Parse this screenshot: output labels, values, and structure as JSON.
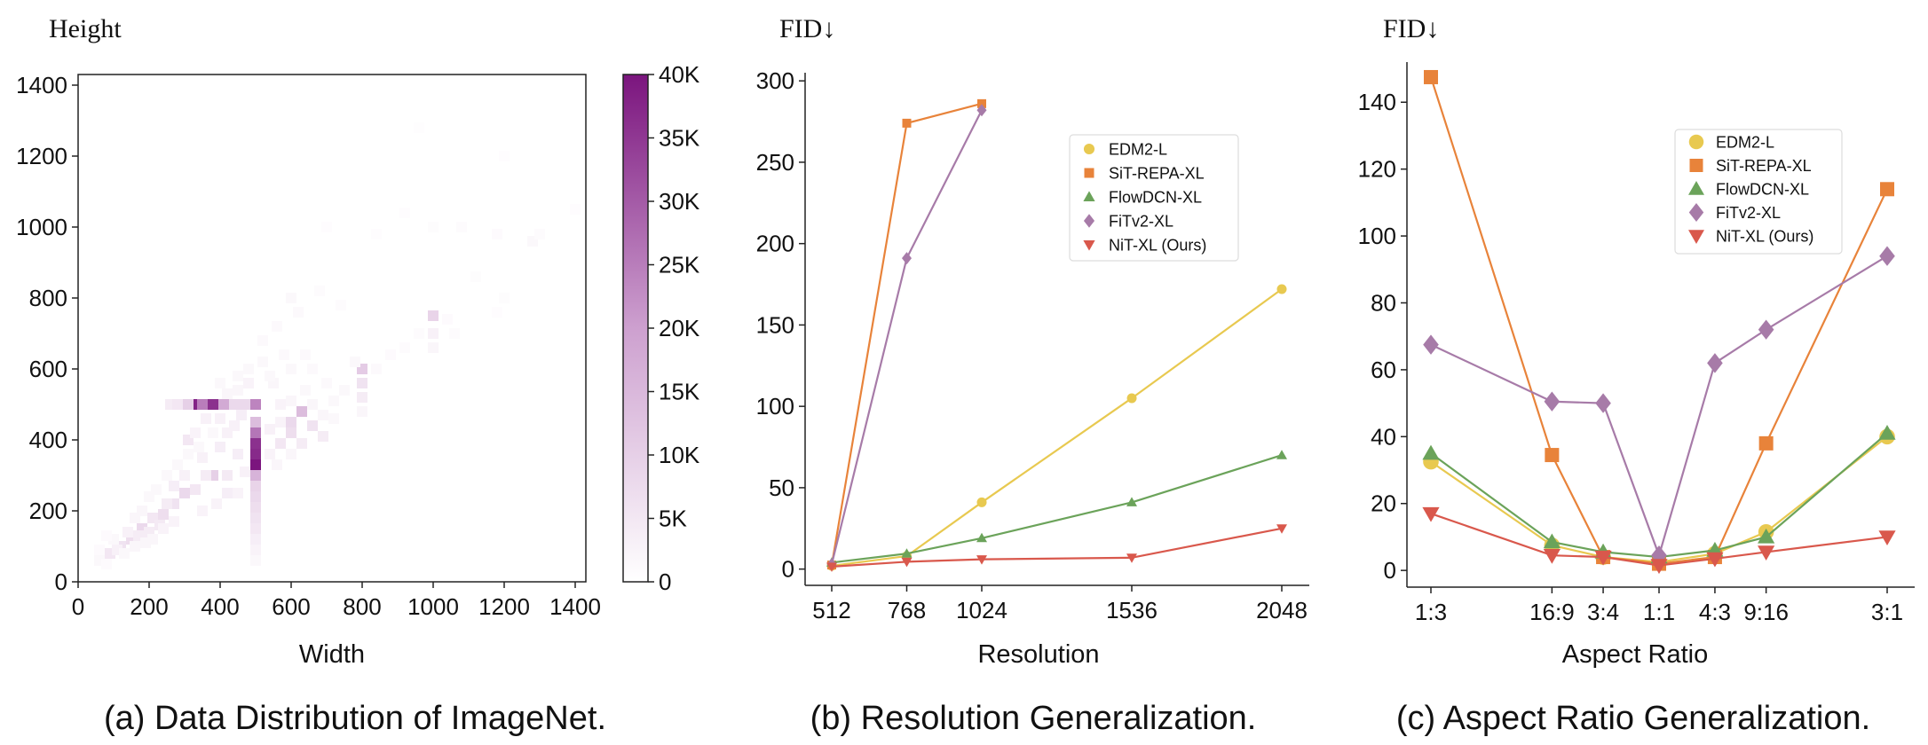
{
  "colors": {
    "edm2": "#E8C950",
    "sit": "#E8833A",
    "flow": "#6BA35A",
    "fitv2": "#A77BA8",
    "nit": "#D9584C",
    "heat_max": "#7B157E"
  },
  "panels": {
    "a": {
      "caption": "(a) Data Distribution of ImageNet."
    },
    "b": {
      "caption": "(b) Resolution Generalization."
    },
    "c": {
      "caption": "(c) Aspect Ratio Generalization."
    }
  },
  "chart_data": [
    {
      "type": "heatmap",
      "xlabel": "Width",
      "ylabel": "Height",
      "xlim": [
        0,
        1430
      ],
      "ylim": [
        0,
        1430
      ],
      "xticks": [
        "0",
        "200",
        "400",
        "600",
        "800",
        "1000",
        "1200",
        "1400"
      ],
      "yticks": [
        "0",
        "200",
        "400",
        "600",
        "800",
        "1000",
        "1200",
        "1400"
      ],
      "colorbar": {
        "range": [
          0,
          40000
        ],
        "ticks": [
          "0",
          "5K",
          "10K",
          "15K",
          "20K",
          "25K",
          "30K",
          "35K",
          "40K"
        ]
      },
      "cells": [
        [
          330,
          500,
          38000
        ],
        [
          380,
          500,
          36000
        ],
        [
          350,
          500,
          25000
        ],
        [
          410,
          500,
          18000
        ],
        [
          310,
          500,
          10000
        ],
        [
          440,
          500,
          8000
        ],
        [
          470,
          500,
          8000
        ],
        [
          500,
          500,
          24000
        ],
        [
          260,
          500,
          4000
        ],
        [
          280,
          500,
          5000
        ],
        [
          500,
          330,
          40000
        ],
        [
          500,
          360,
          37000
        ],
        [
          500,
          390,
          36000
        ],
        [
          500,
          420,
          26000
        ],
        [
          500,
          450,
          14000
        ],
        [
          500,
          300,
          16000
        ],
        [
          500,
          270,
          9000
        ],
        [
          500,
          240,
          8000
        ],
        [
          500,
          210,
          7000
        ],
        [
          500,
          180,
          6000
        ],
        [
          500,
          150,
          5000
        ],
        [
          500,
          120,
          3500
        ],
        [
          500,
          90,
          2500
        ],
        [
          500,
          60,
          1500
        ],
        [
          630,
          480,
          14000
        ],
        [
          600,
          450,
          8000
        ],
        [
          660,
          440,
          6000
        ],
        [
          600,
          420,
          7000
        ],
        [
          570,
          390,
          5000
        ],
        [
          630,
          390,
          4000
        ],
        [
          690,
          410,
          4000
        ],
        [
          800,
          600,
          11000
        ],
        [
          800,
          560,
          6000
        ],
        [
          800,
          520,
          4000
        ],
        [
          1000,
          750,
          9000
        ],
        [
          1000,
          700,
          3000
        ],
        [
          1000,
          660,
          2000
        ],
        [
          380,
          300,
          10000
        ],
        [
          310,
          400,
          5000
        ],
        [
          300,
          250,
          8000
        ],
        [
          240,
          190,
          7000
        ],
        [
          180,
          150,
          8000
        ],
        [
          150,
          120,
          7000
        ],
        [
          120,
          100,
          6000
        ],
        [
          90,
          80,
          5000
        ],
        [
          210,
          180,
          5000
        ],
        [
          270,
          220,
          6000
        ],
        [
          330,
          260,
          5000
        ],
        [
          360,
          300,
          4000
        ],
        [
          250,
          220,
          4000
        ],
        [
          230,
          160,
          4500
        ],
        [
          200,
          140,
          4000
        ],
        [
          170,
          130,
          4000
        ],
        [
          110,
          90,
          3000
        ],
        [
          140,
          140,
          3000
        ],
        [
          270,
          270,
          3500
        ],
        [
          300,
          300,
          3000
        ],
        [
          420,
          300,
          4500
        ],
        [
          450,
          360,
          3500
        ],
        [
          420,
          420,
          3000
        ],
        [
          400,
          380,
          3500
        ],
        [
          350,
          350,
          3000
        ],
        [
          440,
          440,
          3000
        ],
        [
          460,
          470,
          3500
        ],
        [
          400,
          460,
          3000
        ],
        [
          360,
          460,
          3000
        ],
        [
          330,
          420,
          2500
        ],
        [
          470,
          310,
          3000
        ],
        [
          420,
          250,
          3500
        ],
        [
          390,
          220,
          2500
        ],
        [
          450,
          250,
          2500
        ],
        [
          350,
          200,
          2500
        ],
        [
          480,
          560,
          2500
        ],
        [
          450,
          540,
          2000
        ],
        [
          420,
          530,
          2000
        ],
        [
          400,
          560,
          1500
        ],
        [
          450,
          580,
          1500
        ],
        [
          480,
          600,
          1500
        ],
        [
          550,
          560,
          2000
        ],
        [
          570,
          500,
          2500
        ],
        [
          600,
          510,
          2000
        ],
        [
          640,
          540,
          1500
        ],
        [
          540,
          430,
          3000
        ],
        [
          570,
          450,
          2500
        ],
        [
          540,
          360,
          2500
        ],
        [
          560,
          330,
          2000
        ],
        [
          600,
          360,
          2000
        ],
        [
          660,
          500,
          2000
        ],
        [
          690,
          470,
          2000
        ],
        [
          720,
          510,
          1500
        ],
        [
          750,
          540,
          1500
        ],
        [
          720,
          460,
          1500
        ],
        [
          800,
          480,
          2000
        ],
        [
          780,
          620,
          1500
        ],
        [
          840,
          600,
          1200
        ],
        [
          600,
          800,
          1500
        ],
        [
          620,
          760,
          1200
        ],
        [
          560,
          720,
          1200
        ],
        [
          520,
          680,
          1200
        ],
        [
          520,
          620,
          1500
        ],
        [
          640,
          640,
          1200
        ],
        [
          700,
          560,
          1200
        ],
        [
          60,
          60,
          1500
        ],
        [
          80,
          50,
          1000
        ],
        [
          130,
          80,
          1500
        ],
        [
          160,
          100,
          2000
        ],
        [
          190,
          110,
          2000
        ],
        [
          210,
          120,
          2000
        ],
        [
          240,
          150,
          2500
        ],
        [
          270,
          170,
          2500
        ],
        [
          100,
          120,
          1500
        ],
        [
          80,
          130,
          1000
        ],
        [
          60,
          90,
          1000
        ],
        [
          180,
          200,
          2000
        ],
        [
          200,
          240,
          1500
        ],
        [
          160,
          180,
          2000
        ],
        [
          220,
          260,
          1500
        ],
        [
          250,
          300,
          1500
        ],
        [
          280,
          330,
          1500
        ],
        [
          310,
          360,
          1500
        ],
        [
          340,
          380,
          1500
        ],
        [
          380,
          420,
          1500
        ],
        [
          880,
          640,
          1000
        ],
        [
          920,
          660,
          800
        ],
        [
          960,
          700,
          800
        ],
        [
          1040,
          740,
          1000
        ],
        [
          1060,
          700,
          800
        ],
        [
          1280,
          960,
          1500
        ],
        [
          1180,
          980,
          1000
        ],
        [
          1080,
          1000,
          800
        ],
        [
          840,
          980,
          600
        ],
        [
          920,
          1040,
          600
        ],
        [
          1000,
          1000,
          700
        ],
        [
          1200,
          800,
          700
        ],
        [
          1300,
          980,
          800
        ],
        [
          1120,
          860,
          700
        ],
        [
          1180,
          760,
          600
        ],
        [
          1400,
          1050,
          600
        ],
        [
          1200,
          1200,
          600
        ],
        [
          700,
          1000,
          600
        ],
        [
          960,
          1280,
          500
        ],
        [
          740,
          780,
          900
        ],
        [
          680,
          820,
          800
        ],
        [
          600,
          600,
          1500
        ],
        [
          660,
          600,
          1200
        ],
        [
          540,
          580,
          1500
        ],
        [
          580,
          640,
          1200
        ]
      ]
    },
    {
      "type": "line",
      "xlabel": "Resolution",
      "ylabel": "FID↓",
      "ylim": [
        -10,
        305
      ],
      "yticks": [
        0,
        50,
        100,
        150,
        200,
        250,
        300
      ],
      "xticks": [
        512,
        768,
        1024,
        1536,
        2048
      ],
      "legend_position": "upper-right",
      "series": [
        {
          "name": "EDM2-L",
          "marker": "circle",
          "color_key": "edm2",
          "x": [
            512,
            768,
            1024,
            1536,
            2048
          ],
          "y": [
            2.0,
            8.0,
            41.0,
            105.0,
            172.0
          ]
        },
        {
          "name": "SiT-REPA-XL",
          "marker": "square",
          "color_key": "sit",
          "x": [
            512,
            768,
            1024
          ],
          "y": [
            2.5,
            274.0,
            286.0
          ]
        },
        {
          "name": "FlowDCN-XL",
          "marker": "triangle-up",
          "color_key": "flow",
          "x": [
            512,
            768,
            1024,
            1536,
            2048
          ],
          "y": [
            4.0,
            9.5,
            19.0,
            41.0,
            70.0
          ]
        },
        {
          "name": "FiTv2-XL",
          "marker": "diamond",
          "color_key": "fitv2",
          "x": [
            512,
            768,
            1024
          ],
          "y": [
            3.0,
            191.0,
            282.0
          ]
        },
        {
          "name": "NiT-XL (Ours)",
          "marker": "triangle-down",
          "color_key": "nit",
          "x": [
            512,
            768,
            1024,
            1536,
            2048
          ],
          "y": [
            1.5,
            4.5,
            6.0,
            7.0,
            25.0
          ]
        }
      ]
    },
    {
      "type": "line",
      "xlabel": "Aspect Ratio",
      "ylabel": "FID↓",
      "ylim": [
        -5,
        152
      ],
      "yticks": [
        0,
        20,
        40,
        60,
        80,
        100,
        120,
        140
      ],
      "categories": [
        "1:3",
        "16:9",
        "3:4",
        "1:1",
        "4:3",
        "9:16",
        "3:1"
      ],
      "category_positions": [
        0.0,
        1.3,
        1.85,
        2.45,
        3.05,
        3.6,
        4.9
      ],
      "legend_position": "upper-right",
      "series": [
        {
          "name": "EDM2-L",
          "marker": "circle",
          "color_key": "edm2",
          "y": [
            32.5,
            7.5,
            4.0,
            2.5,
            5.0,
            11.5,
            40.0
          ]
        },
        {
          "name": "SiT-REPA-XL",
          "marker": "square",
          "color_key": "sit",
          "y": [
            147.5,
            34.5,
            4.0,
            2.0,
            4.0,
            38.0,
            114.0
          ]
        },
        {
          "name": "FlowDCN-XL",
          "marker": "triangle-up",
          "color_key": "flow",
          "y": [
            35.0,
            8.5,
            5.5,
            4.0,
            6.0,
            10.0,
            41.0
          ]
        },
        {
          "name": "FiTv2-XL",
          "marker": "diamond",
          "color_key": "fitv2",
          "y": [
            67.5,
            50.5,
            50.0,
            4.5,
            62.0,
            72.0,
            94.0
          ]
        },
        {
          "name": "NiT-XL (Ours)",
          "marker": "triangle-down",
          "color_key": "nit",
          "y": [
            17.0,
            4.5,
            4.0,
            1.5,
            3.5,
            5.5,
            10.0
          ]
        }
      ]
    }
  ]
}
